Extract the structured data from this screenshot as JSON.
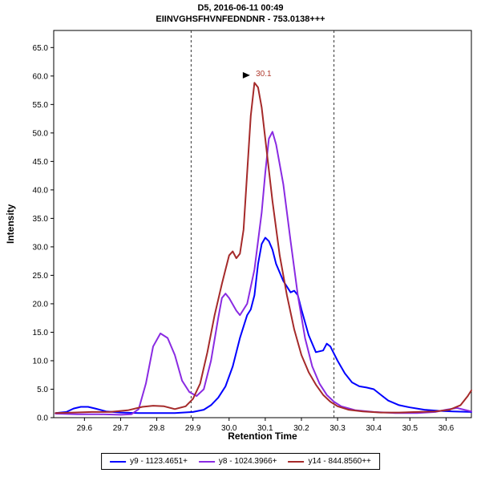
{
  "chart_data": {
    "type": "line",
    "title": "D5, 2016-06-11 00:49",
    "subtitle": "EIINVGHSFHVNFEDNDNR - 753.0138+++",
    "xlabel": "Retention Time",
    "ylabel": "Intensity",
    "xlim": [
      29.515,
      30.67
    ],
    "ylim": [
      0,
      68
    ],
    "grid": false,
    "legend_position": "bottom",
    "xtick_values": [
      29.6,
      29.7,
      29.8,
      29.9,
      30.0,
      30.1,
      30.2,
      30.3,
      30.4,
      30.5,
      30.6
    ],
    "xtick_labels": [
      "29.6",
      "29.7",
      "29.8",
      "29.9",
      "30.0",
      "30.1",
      "30.2",
      "30.3",
      "30.4",
      "30.5",
      "30.6"
    ],
    "ytick_values": [
      0,
      5,
      10,
      15,
      20,
      25,
      30,
      35,
      40,
      45,
      50,
      55,
      60,
      65
    ],
    "ytick_labels": [
      "0.0",
      "5.0",
      "10.0",
      "15.0",
      "20.0",
      "25.0",
      "30.0",
      "35.0",
      "40.0",
      "45.0",
      "50.0",
      "55.0",
      "60.0",
      "65.0"
    ],
    "integration_boundaries": [
      29.895,
      30.29
    ],
    "boundary_color": "#333333",
    "peak_annotation": {
      "text": "30.1",
      "x": 30.08,
      "y": 59.0,
      "color": "#b03a2e",
      "arrow_color": "#000000"
    },
    "series": [
      {
        "id": "y9",
        "name": "y9 - 1123.4651+",
        "color": "#0000ff",
        "points": [
          [
            29.52,
            0.8
          ],
          [
            29.55,
            1.0
          ],
          [
            29.57,
            1.6
          ],
          [
            29.59,
            1.9
          ],
          [
            29.61,
            1.9
          ],
          [
            29.63,
            1.6
          ],
          [
            29.66,
            1.1
          ],
          [
            29.7,
            0.9
          ],
          [
            29.75,
            0.8
          ],
          [
            29.8,
            0.8
          ],
          [
            29.85,
            0.8
          ],
          [
            29.9,
            1.0
          ],
          [
            29.93,
            1.4
          ],
          [
            29.95,
            2.2
          ],
          [
            29.97,
            3.5
          ],
          [
            29.99,
            5.5
          ],
          [
            30.01,
            9.0
          ],
          [
            30.03,
            14.0
          ],
          [
            30.05,
            18.0
          ],
          [
            30.06,
            19.0
          ],
          [
            30.07,
            21.5
          ],
          [
            30.08,
            27.0
          ],
          [
            30.09,
            30.5
          ],
          [
            30.1,
            31.6
          ],
          [
            30.11,
            31.0
          ],
          [
            30.12,
            29.5
          ],
          [
            30.13,
            27.0
          ],
          [
            30.15,
            24.0
          ],
          [
            30.17,
            22.0
          ],
          [
            30.18,
            22.3
          ],
          [
            30.19,
            21.5
          ],
          [
            30.2,
            19.0
          ],
          [
            30.22,
            14.5
          ],
          [
            30.24,
            11.5
          ],
          [
            30.26,
            11.8
          ],
          [
            30.27,
            13.0
          ],
          [
            30.28,
            12.5
          ],
          [
            30.3,
            10.0
          ],
          [
            30.32,
            7.8
          ],
          [
            30.34,
            6.2
          ],
          [
            30.36,
            5.5
          ],
          [
            30.38,
            5.3
          ],
          [
            30.4,
            5.0
          ],
          [
            30.42,
            4.0
          ],
          [
            30.44,
            3.0
          ],
          [
            30.47,
            2.2
          ],
          [
            30.5,
            1.8
          ],
          [
            30.54,
            1.4
          ],
          [
            30.58,
            1.2
          ],
          [
            30.62,
            1.1
          ],
          [
            30.67,
            1.0
          ]
        ]
      },
      {
        "id": "y8",
        "name": "y8 - 1024.3966+",
        "color": "#8a2be2",
        "points": [
          [
            29.52,
            0.7
          ],
          [
            29.58,
            0.6
          ],
          [
            29.64,
            0.6
          ],
          [
            29.7,
            0.5
          ],
          [
            29.73,
            0.6
          ],
          [
            29.75,
            1.5
          ],
          [
            29.77,
            6.0
          ],
          [
            29.79,
            12.5
          ],
          [
            29.81,
            14.8
          ],
          [
            29.83,
            14.0
          ],
          [
            29.85,
            11.0
          ],
          [
            29.87,
            6.5
          ],
          [
            29.89,
            4.5
          ],
          [
            29.91,
            3.8
          ],
          [
            29.93,
            5.0
          ],
          [
            29.95,
            10.0
          ],
          [
            29.97,
            17.5
          ],
          [
            29.98,
            21.0
          ],
          [
            29.99,
            21.8
          ],
          [
            30.0,
            21.0
          ],
          [
            30.02,
            18.8
          ],
          [
            30.03,
            18.0
          ],
          [
            30.05,
            20.0
          ],
          [
            30.07,
            26.0
          ],
          [
            30.09,
            36.0
          ],
          [
            30.1,
            43.0
          ],
          [
            30.11,
            49.0
          ],
          [
            30.12,
            50.2
          ],
          [
            30.13,
            48.0
          ],
          [
            30.15,
            41.0
          ],
          [
            30.17,
            31.0
          ],
          [
            30.19,
            21.5
          ],
          [
            30.21,
            14.0
          ],
          [
            30.23,
            9.0
          ],
          [
            30.25,
            6.0
          ],
          [
            30.27,
            4.0
          ],
          [
            30.29,
            2.8
          ],
          [
            30.31,
            2.0
          ],
          [
            30.35,
            1.3
          ],
          [
            30.4,
            1.0
          ],
          [
            30.46,
            0.8
          ],
          [
            30.52,
            0.8
          ],
          [
            30.57,
            1.0
          ],
          [
            30.6,
            1.4
          ],
          [
            30.63,
            1.7
          ],
          [
            30.65,
            1.4
          ],
          [
            30.67,
            1.1
          ]
        ]
      },
      {
        "id": "y14",
        "name": "y14 - 844.8560++",
        "color": "#a52a2a",
        "points": [
          [
            29.52,
            0.8
          ],
          [
            29.57,
            0.9
          ],
          [
            29.62,
            1.0
          ],
          [
            29.67,
            1.0
          ],
          [
            29.72,
            1.3
          ],
          [
            29.76,
            1.9
          ],
          [
            29.79,
            2.1
          ],
          [
            29.82,
            2.0
          ],
          [
            29.85,
            1.5
          ],
          [
            29.88,
            2.0
          ],
          [
            29.9,
            3.3
          ],
          [
            29.92,
            6.0
          ],
          [
            29.94,
            11.5
          ],
          [
            29.96,
            18.0
          ],
          [
            29.98,
            23.5
          ],
          [
            29.99,
            26.0
          ],
          [
            30.0,
            28.5
          ],
          [
            30.01,
            29.2
          ],
          [
            30.02,
            28.0
          ],
          [
            30.03,
            28.8
          ],
          [
            30.04,
            33.0
          ],
          [
            30.05,
            43.0
          ],
          [
            30.06,
            53.0
          ],
          [
            30.07,
            58.8
          ],
          [
            30.08,
            58.0
          ],
          [
            30.09,
            54.5
          ],
          [
            30.1,
            49.0
          ],
          [
            30.12,
            38.0
          ],
          [
            30.14,
            28.5
          ],
          [
            30.16,
            21.5
          ],
          [
            30.18,
            15.5
          ],
          [
            30.2,
            11.0
          ],
          [
            30.22,
            8.0
          ],
          [
            30.24,
            5.8
          ],
          [
            30.26,
            4.0
          ],
          [
            30.28,
            2.8
          ],
          [
            30.3,
            2.0
          ],
          [
            30.33,
            1.4
          ],
          [
            30.37,
            1.1
          ],
          [
            30.42,
            0.9
          ],
          [
            30.47,
            0.9
          ],
          [
            30.52,
            1.0
          ],
          [
            30.57,
            1.1
          ],
          [
            30.61,
            1.4
          ],
          [
            30.64,
            2.2
          ],
          [
            30.66,
            3.8
          ],
          [
            30.67,
            4.8
          ]
        ]
      }
    ]
  }
}
